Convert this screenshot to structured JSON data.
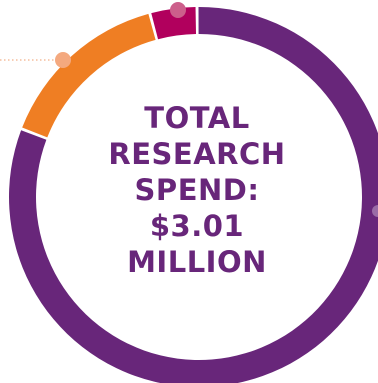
{
  "center_label": {
    "lines": [
      "TOTAL",
      "RESEARCH",
      "SPEND:",
      "$3.01",
      "MILLION"
    ]
  },
  "colors": {
    "purple": "#68267a",
    "orange": "#ef7e23",
    "magenta": "#b1005d",
    "orange_marker": "#f4a97f",
    "magenta_marker": "#cc5f8b",
    "purple_marker": "#9a6ca6",
    "leader_line": "#f2b089",
    "background": "#ffffff"
  },
  "chart_data": {
    "type": "pie",
    "title": "TOTAL RESEARCH SPEND: $3.01 MILLION",
    "total_label": "$3.01 MILLION",
    "slices": [
      {
        "color": "#b1005d",
        "share": 0.04
      },
      {
        "color": "#68267a",
        "share": 0.81
      },
      {
        "color": "#ef7e23",
        "share": 0.15
      }
    ],
    "legend": "none",
    "grid": false
  }
}
